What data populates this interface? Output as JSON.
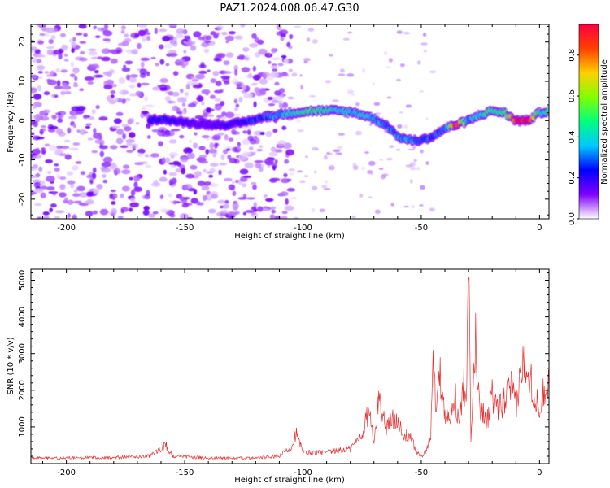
{
  "figure": {
    "title": "PAZ1.2024.008.06.47.G30"
  },
  "chart_data": [
    {
      "type": "heatmap",
      "xlabel": "Height of straight line (km)",
      "ylabel": "Frequency (Hz)",
      "xlim": [
        -215,
        4
      ],
      "ylim": [
        -25,
        24.5
      ],
      "x_ticks": [
        -200,
        -150,
        -100,
        -50,
        0
      ],
      "y_ticks": [
        -20,
        -10,
        0,
        10,
        20
      ],
      "colorbar": {
        "label": "Normalized spectral amplitude",
        "range": [
          0,
          0.95
        ],
        "ticks": [
          0.0,
          0.2,
          0.4,
          0.6,
          0.8
        ],
        "colormap": "gist_rainbow_r",
        "colors": [
          "#ffffff",
          "#7f00ff",
          "#0000ff",
          "#00c8ff",
          "#00ff80",
          "#80ff00",
          "#ffd000",
          "#ff4000",
          "#ff0040"
        ]
      },
      "noise_region": {
        "x_range": [
          -215,
          -105
        ],
        "freq_range": [
          -25,
          24.5
        ],
        "typical_amplitude": 0.1
      },
      "ridge": {
        "description_x": [
          -165,
          -160,
          -150,
          -140,
          -130,
          -115,
          -105,
          -95,
          -85,
          -78,
          -72,
          -65,
          -60,
          -55,
          -50,
          -45,
          -40,
          -35,
          -30,
          -25,
          -20,
          -15,
          -10,
          -5,
          0,
          4
        ],
        "freq": [
          0,
          0.5,
          -0.5,
          -1,
          -1,
          1,
          2,
          2.5,
          2.5,
          2,
          1,
          -1,
          -4,
          -5,
          -5,
          -4,
          -2,
          -1,
          0,
          1.5,
          2.5,
          2,
          0,
          0,
          2,
          2.5
        ],
        "amplitude": [
          0.2,
          0.25,
          0.18,
          0.15,
          0.2,
          0.3,
          0.4,
          0.45,
          0.4,
          0.38,
          0.35,
          0.3,
          0.32,
          0.35,
          0.3,
          0.28,
          0.3,
          0.85,
          0.35,
          0.4,
          0.45,
          0.45,
          0.9,
          0.9,
          0.4,
          0.45
        ]
      }
    },
    {
      "type": "line",
      "xlabel": "Height of straight line (km)",
      "ylabel": "SNR (10 * v/v)",
      "xlim": [
        -215,
        4
      ],
      "ylim": [
        0,
        5300
      ],
      "x_ticks": [
        -200,
        -150,
        -100,
        -50,
        0
      ],
      "y_ticks": [
        1000,
        2000,
        3000,
        4000,
        5000
      ],
      "color": "#e83030",
      "series": [
        {
          "x": [
            -215,
            -200,
            -180,
            -165,
            -160,
            -158,
            -155,
            -140,
            -120,
            -110,
            -105,
            -103,
            -100,
            -90,
            -80,
            -75,
            -72,
            -70,
            -68,
            -65,
            -62,
            -60,
            -58,
            -55,
            -52,
            -50,
            -48,
            -46,
            -45,
            -44,
            -42,
            -40,
            -38,
            -36,
            -34,
            -32,
            -31,
            -30,
            -29,
            -28,
            -27,
            -26,
            -25,
            -22,
            -20,
            -18,
            -15,
            -12,
            -10,
            -8,
            -6,
            -4,
            -2,
            0,
            2,
            4
          ],
          "y": [
            150,
            150,
            170,
            200,
            400,
            500,
            200,
            150,
            150,
            200,
            450,
            850,
            300,
            300,
            400,
            800,
            1500,
            500,
            1800,
            1000,
            1200,
            1300,
            700,
            800,
            300,
            200,
            300,
            800,
            2800,
            1700,
            2400,
            1500,
            1100,
            2000,
            1000,
            2200,
            1400,
            5300,
            600,
            2000,
            3500,
            2000,
            1500,
            1200,
            1900,
            1400,
            1700,
            2100,
            1500,
            2400,
            2900,
            2500,
            1700,
            1600,
            2000,
            2400
          ]
        }
      ]
    }
  ]
}
